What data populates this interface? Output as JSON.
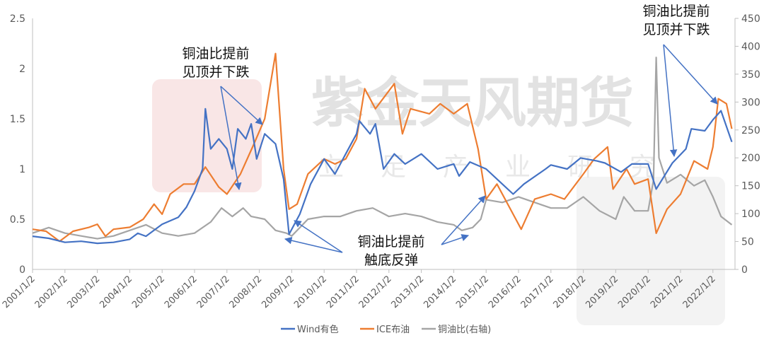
{
  "watermark": {
    "brand": "紫金天风期货",
    "slogan": "立足产业研究"
  },
  "chart_data": {
    "type": "line",
    "title": "",
    "xlabel": "",
    "ylabel": "",
    "ylim_left": [
      0,
      2.5
    ],
    "ylim_right": [
      0,
      450
    ],
    "yticks_left": [
      "0",
      "0.5",
      "1",
      "1.5",
      "2",
      "2.5"
    ],
    "yticks_right": [
      "0",
      "50",
      "100",
      "150",
      "200",
      "250",
      "300",
      "350",
      "400",
      "450"
    ],
    "xticks": [
      "2001/1/2",
      "2002/1/2",
      "2003/1/2",
      "2004/1/2",
      "2005/1/2",
      "2006/1/2",
      "2007/1/2",
      "2008/1/2",
      "2009/1/2",
      "2010/1/2",
      "2011/1/2",
      "2012/1/2",
      "2013/1/2",
      "2014/1/2",
      "2015/1/2",
      "2016/1/2",
      "2017/1/2",
      "2018/1/2",
      "2019/1/2",
      "2020/1/2",
      "2021/1/2",
      "2022/1/2"
    ],
    "grid": false,
    "legend_position": "bottom",
    "series": [
      {
        "name": "Wind有色",
        "axis": "left",
        "color": "#4472C4",
        "points": [
          [
            "2001-01",
            0.33
          ],
          [
            "2001-07",
            0.31
          ],
          [
            "2002-01",
            0.27
          ],
          [
            "2002-07",
            0.28
          ],
          [
            "2003-01",
            0.26
          ],
          [
            "2003-07",
            0.27
          ],
          [
            "2004-01",
            0.3
          ],
          [
            "2004-04",
            0.36
          ],
          [
            "2004-07",
            0.33
          ],
          [
            "2005-01",
            0.45
          ],
          [
            "2005-07",
            0.52
          ],
          [
            "2005-10",
            0.62
          ],
          [
            "2006-01",
            0.78
          ],
          [
            "2006-04",
            1.0
          ],
          [
            "2006-05",
            1.6
          ],
          [
            "2006-07",
            1.2
          ],
          [
            "2006-10",
            1.3
          ],
          [
            "2007-01",
            1.2
          ],
          [
            "2007-03",
            1.0
          ],
          [
            "2007-05",
            1.4
          ],
          [
            "2007-08",
            1.3
          ],
          [
            "2007-10",
            1.45
          ],
          [
            "2007-12",
            1.1
          ],
          [
            "2008-03",
            1.35
          ],
          [
            "2008-07",
            1.25
          ],
          [
            "2008-10",
            0.9
          ],
          [
            "2008-12",
            0.35
          ],
          [
            "2009-04",
            0.55
          ],
          [
            "2009-08",
            0.85
          ],
          [
            "2010-01",
            1.1
          ],
          [
            "2010-05",
            0.95
          ],
          [
            "2010-09",
            1.15
          ],
          [
            "2011-01",
            1.35
          ],
          [
            "2011-02",
            1.48
          ],
          [
            "2011-06",
            1.35
          ],
          [
            "2011-08",
            1.45
          ],
          [
            "2011-11",
            1.0
          ],
          [
            "2012-03",
            1.15
          ],
          [
            "2012-07",
            1.05
          ],
          [
            "2013-01",
            1.15
          ],
          [
            "2013-07",
            1.0
          ],
          [
            "2014-01",
            1.05
          ],
          [
            "2014-03",
            0.93
          ],
          [
            "2014-07",
            1.07
          ],
          [
            "2015-01",
            1.0
          ],
          [
            "2015-07",
            0.85
          ],
          [
            "2015-11",
            0.75
          ],
          [
            "2016-03",
            0.85
          ],
          [
            "2016-11",
            1.0
          ],
          [
            "2017-01",
            1.04
          ],
          [
            "2017-07",
            1.0
          ],
          [
            "2017-12",
            1.11
          ],
          [
            "2018-06",
            1.08
          ],
          [
            "2018-09",
            1.06
          ],
          [
            "2019-03",
            0.97
          ],
          [
            "2019-07",
            1.05
          ],
          [
            "2020-01",
            1.05
          ],
          [
            "2020-04",
            0.8
          ],
          [
            "2020-10",
            1.06
          ],
          [
            "2021-03",
            1.2
          ],
          [
            "2021-05",
            1.4
          ],
          [
            "2021-10",
            1.38
          ],
          [
            "2022-01",
            1.49
          ],
          [
            "2022-04",
            1.58
          ],
          [
            "2022-08",
            1.27
          ]
        ]
      },
      {
        "name": "ICE布油",
        "axis": "left",
        "color": "#ED7D31",
        "points": [
          [
            "2001-01",
            0.4
          ],
          [
            "2001-06",
            0.38
          ],
          [
            "2001-11",
            0.28
          ],
          [
            "2002-04",
            0.38
          ],
          [
            "2002-10",
            0.42
          ],
          [
            "2003-01",
            0.45
          ],
          [
            "2003-04",
            0.33
          ],
          [
            "2003-07",
            0.4
          ],
          [
            "2004-01",
            0.42
          ],
          [
            "2004-06",
            0.5
          ],
          [
            "2004-10",
            0.65
          ],
          [
            "2005-01",
            0.55
          ],
          [
            "2005-04",
            0.75
          ],
          [
            "2005-09",
            0.85
          ],
          [
            "2006-01",
            0.85
          ],
          [
            "2006-05",
            1.02
          ],
          [
            "2006-10",
            0.82
          ],
          [
            "2007-01",
            0.75
          ],
          [
            "2007-06",
            0.95
          ],
          [
            "2007-11",
            1.25
          ],
          [
            "2008-03",
            1.5
          ],
          [
            "2008-07",
            2.15
          ],
          [
            "2008-10",
            1.0
          ],
          [
            "2008-12",
            0.6
          ],
          [
            "2009-03",
            0.65
          ],
          [
            "2009-07",
            0.95
          ],
          [
            "2010-01",
            1.1
          ],
          [
            "2010-05",
            1.05
          ],
          [
            "2010-09",
            1.1
          ],
          [
            "2011-01",
            1.3
          ],
          [
            "2011-04",
            1.8
          ],
          [
            "2011-08",
            1.6
          ],
          [
            "2012-03",
            1.85
          ],
          [
            "2012-06",
            1.35
          ],
          [
            "2012-09",
            1.6
          ],
          [
            "2013-04",
            1.55
          ],
          [
            "2013-08",
            1.65
          ],
          [
            "2014-01",
            1.55
          ],
          [
            "2014-06",
            1.65
          ],
          [
            "2014-10",
            1.2
          ],
          [
            "2015-01",
            0.7
          ],
          [
            "2015-05",
            0.85
          ],
          [
            "2015-12",
            0.5
          ],
          [
            "2016-02",
            0.4
          ],
          [
            "2016-07",
            0.7
          ],
          [
            "2017-01",
            0.75
          ],
          [
            "2017-06",
            0.7
          ],
          [
            "2018-01",
            0.95
          ],
          [
            "2018-05",
            1.1
          ],
          [
            "2018-10",
            1.22
          ],
          [
            "2018-12",
            0.8
          ],
          [
            "2019-05",
            1.0
          ],
          [
            "2019-08",
            0.85
          ],
          [
            "2020-01",
            0.9
          ],
          [
            "2020-04",
            0.36
          ],
          [
            "2020-08",
            0.6
          ],
          [
            "2021-01",
            0.75
          ],
          [
            "2021-06",
            1.08
          ],
          [
            "2021-11",
            1.0
          ],
          [
            "2022-01",
            1.22
          ],
          [
            "2022-03",
            1.7
          ],
          [
            "2022-06",
            1.65
          ],
          [
            "2022-08",
            1.4
          ]
        ]
      },
      {
        "name": "铜油比(右轴)",
        "axis": "right",
        "color": "#A5A5A5",
        "points": [
          [
            "2001-01",
            65
          ],
          [
            "2001-07",
            75
          ],
          [
            "2002-01",
            65
          ],
          [
            "2002-07",
            60
          ],
          [
            "2003-01",
            55
          ],
          [
            "2003-07",
            60
          ],
          [
            "2004-01",
            70
          ],
          [
            "2004-07",
            80
          ],
          [
            "2005-01",
            65
          ],
          [
            "2005-07",
            60
          ],
          [
            "2006-01",
            65
          ],
          [
            "2006-07",
            85
          ],
          [
            "2006-11",
            110
          ],
          [
            "2007-03",
            95
          ],
          [
            "2007-07",
            110
          ],
          [
            "2007-10",
            95
          ],
          [
            "2008-03",
            90
          ],
          [
            "2008-07",
            70
          ],
          [
            "2008-11",
            65
          ],
          [
            "2009-01",
            60
          ],
          [
            "2009-07",
            90
          ],
          [
            "2010-01",
            95
          ],
          [
            "2010-07",
            95
          ],
          [
            "2011-01",
            105
          ],
          [
            "2011-07",
            110
          ],
          [
            "2012-01",
            95
          ],
          [
            "2012-07",
            100
          ],
          [
            "2013-01",
            95
          ],
          [
            "2013-07",
            85
          ],
          [
            "2014-01",
            80
          ],
          [
            "2014-04",
            70
          ],
          [
            "2014-08",
            75
          ],
          [
            "2014-11",
            90
          ],
          [
            "2015-01",
            125
          ],
          [
            "2015-07",
            120
          ],
          [
            "2016-01",
            130
          ],
          [
            "2016-07",
            120
          ],
          [
            "2017-01",
            110
          ],
          [
            "2017-07",
            110
          ],
          [
            "2018-01",
            130
          ],
          [
            "2018-07",
            105
          ],
          [
            "2019-01",
            90
          ],
          [
            "2019-04",
            130
          ],
          [
            "2019-08",
            105
          ],
          [
            "2020-01",
            105
          ],
          [
            "2020-03",
            160
          ],
          [
            "2020-04",
            380
          ],
          [
            "2020-05",
            200
          ],
          [
            "2020-08",
            155
          ],
          [
            "2021-01",
            170
          ],
          [
            "2021-06",
            150
          ],
          [
            "2021-10",
            160
          ],
          [
            "2022-01",
            130
          ],
          [
            "2022-04",
            95
          ],
          [
            "2022-08",
            80
          ]
        ]
      }
    ],
    "annotations": [
      {
        "text": [
          "铜油比提前",
          "见顶并下跌"
        ]
      },
      {
        "text": [
          "铜油比提前",
          "触底反弹"
        ]
      },
      {
        "text": [
          "铜油比提前",
          "见顶并下跌"
        ]
      }
    ]
  }
}
